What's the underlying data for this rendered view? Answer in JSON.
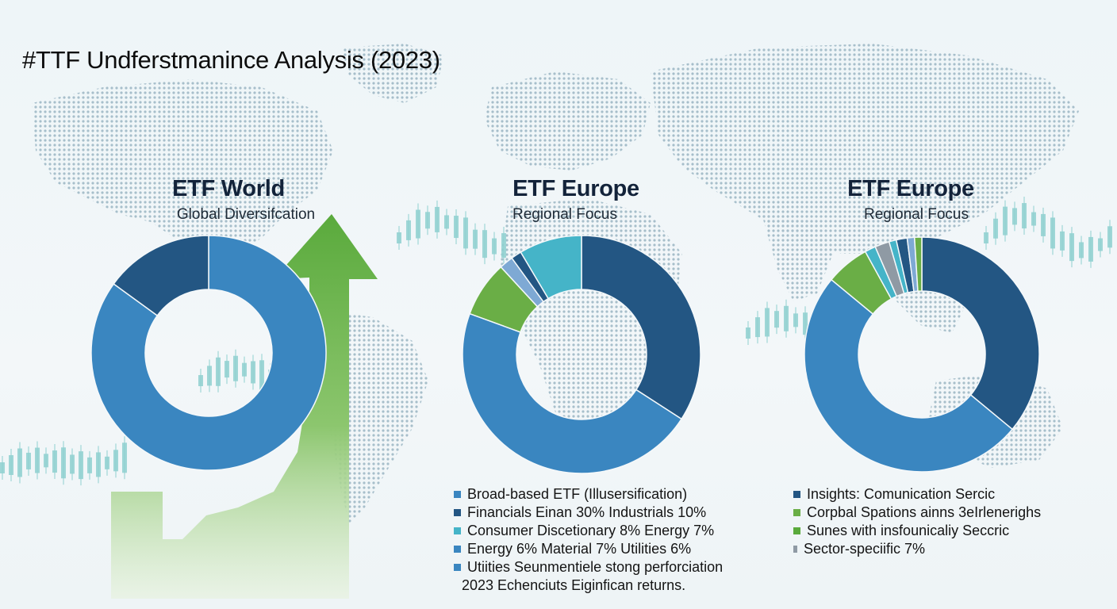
{
  "page": {
    "title": "#TTF Undferstmanince Analysis (2023)"
  },
  "colors": {
    "blue": "#3a86c0",
    "dark_blue": "#235683",
    "teal": "#45b4c8",
    "light_blue": "#7ea9d4",
    "green": "#6aae46",
    "gray": "#8f9aa4",
    "arrow_green": "#5aaa3c",
    "map_dot": "#9fb9c6",
    "candle": "#8fd0d0"
  },
  "charts": [
    {
      "title": "ETF World",
      "subtitle": "Global Diversifcation"
    },
    {
      "title": "ETF Europe",
      "subtitle": "Regional Focus"
    },
    {
      "title": "ETF Europe",
      "subtitle": "Regional Focus"
    }
  ],
  "legend_middle": {
    "items": [
      {
        "label": "Broad-based ETF (Illusersification)",
        "color": "#3a86c0"
      },
      {
        "label": "Financials Einan 30% Industrials 10%",
        "color": "#235683"
      },
      {
        "label": "Consumer Discetionary 8% Energy 7%",
        "color": "#45b4c8"
      },
      {
        "label": "Energy 6% Material 7% Utilities 6%",
        "color": "#3a86c0"
      },
      {
        "label": "Utiities Seunmentiele stong perforciation",
        "color": "#3a86c0"
      }
    ],
    "note": "2023 Echenciuts Eiginfican returns."
  },
  "legend_right": {
    "items": [
      {
        "label": "Insights: Comunication Sercic",
        "color": "#235683"
      },
      {
        "label": "Corpbal Spations ainns 3eIrlenerighs",
        "color": "#6aae46"
      },
      {
        "label": "Sunes with insfounicaliy Seccric",
        "color": "#5aaa3c"
      },
      {
        "label": "Sector-speciific 7%",
        "color": "#8f9aa4"
      }
    ]
  },
  "chart_data": [
    {
      "type": "pie",
      "title": "ETF World",
      "subtitle": "Global Diversifcation",
      "values": [
        85,
        15
      ],
      "colors": [
        "#3a86c0",
        "#235683"
      ]
    },
    {
      "type": "pie",
      "title": "ETF Europe",
      "subtitle": "Regional Focus",
      "values": [
        36,
        49,
        8,
        2,
        1.5,
        9
      ],
      "colors": [
        "#235683",
        "#3a86c0",
        "#6aae46",
        "#7ea9d4",
        "#235683",
        "#45b4c8"
      ]
    },
    {
      "type": "pie",
      "title": "ETF Europe",
      "subtitle": "Regional Focus",
      "values": [
        36,
        50,
        6,
        1.5,
        2,
        1,
        1.5,
        1,
        1
      ],
      "colors": [
        "#235683",
        "#3a86c0",
        "#6aae46",
        "#45b4c8",
        "#8f9aa4",
        "#45b4c8",
        "#235683",
        "#7ea9d4",
        "#6aae46"
      ]
    }
  ]
}
